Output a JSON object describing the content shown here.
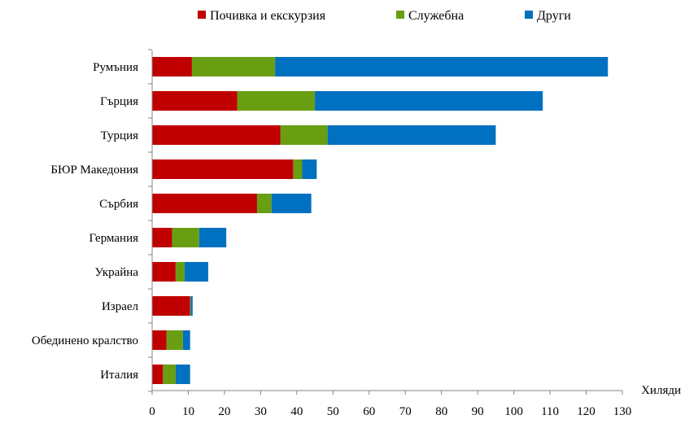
{
  "chart_data": {
    "type": "bar",
    "orientation": "horizontal",
    "stacked": true,
    "categories": [
      "Румъния",
      "Гърция",
      "Турция",
      "БЮР Македония",
      "Сърбия",
      "Германия",
      "Украйна",
      "Израел",
      "Обединено кралство",
      "Италия"
    ],
    "series": [
      {
        "name": "Почивка и екскурзия",
        "color": "#C00000",
        "values": [
          11,
          23.5,
          35.5,
          39,
          29,
          5.5,
          6.5,
          10.5,
          4,
          3
        ]
      },
      {
        "name": "Служебна",
        "color": "#6A9E12",
        "values": [
          23,
          21.5,
          13,
          2.5,
          4,
          7.5,
          2.5,
          0.2,
          4.5,
          3.5
        ]
      },
      {
        "name": "Други",
        "color": "#0070C0",
        "values": [
          92,
          63,
          46.5,
          4,
          11,
          7.5,
          6.5,
          0.5,
          2,
          4
        ]
      }
    ],
    "unit_label": "Хиляди",
    "xlim": [
      0,
      130
    ],
    "xticks": [
      "0",
      "10",
      "20",
      "30",
      "40",
      "50",
      "60",
      "70",
      "80",
      "90",
      "100",
      "110",
      "120",
      "130"
    ],
    "grid": false,
    "legend_position": "top"
  }
}
